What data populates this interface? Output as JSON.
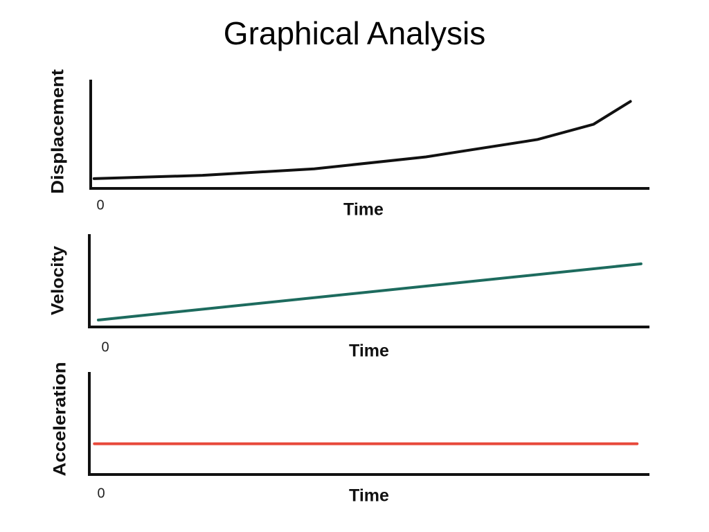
{
  "title": "Graphical Analysis",
  "chart_data": [
    {
      "type": "line",
      "y_label": "Displacement",
      "x_label": "Time",
      "xlim": [
        0,
        100
      ],
      "ylim": [
        0,
        100
      ],
      "xticks": [
        0
      ],
      "x": [
        0.6,
        20,
        40,
        60,
        80,
        90,
        96.6
      ],
      "series": [
        {
          "color": "#111111",
          "values": [
            9,
            12,
            18,
            29,
            45,
            59,
            80
          ]
        }
      ]
    },
    {
      "type": "line",
      "y_label": "Velocity",
      "x_label": "Time",
      "xlim": [
        0,
        100
      ],
      "ylim": [
        0,
        100
      ],
      "xticks": [
        0
      ],
      "x": [
        1.6,
        98.5
      ],
      "series": [
        {
          "color": "#1d6b5e",
          "values": [
            7.5,
            68
          ]
        }
      ]
    },
    {
      "type": "line",
      "y_label": "Acceleration",
      "x_label": "Time",
      "xlim": [
        0,
        100
      ],
      "ylim": [
        0,
        100
      ],
      "xticks": [
        0
      ],
      "x": [
        0.9,
        97.8
      ],
      "series": [
        {
          "color": "#e8483a",
          "values": [
            30,
            30
          ]
        }
      ]
    }
  ]
}
